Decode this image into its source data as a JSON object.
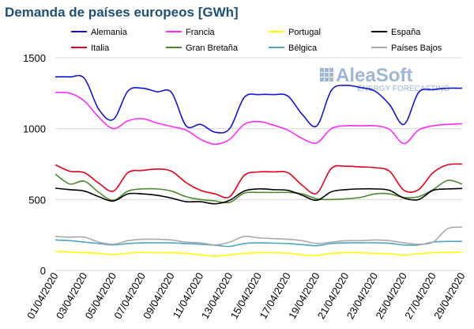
{
  "chart_data": {
    "type": "line",
    "title": "Demanda de países europeos [GWh]",
    "xlabel": "",
    "ylabel": "",
    "ylim": [
      0,
      1500
    ],
    "yticks": [
      0,
      500,
      1000,
      1500
    ],
    "y_tick_labels": [
      "0",
      "500",
      "1000",
      "1500"
    ],
    "grid": "horizontal",
    "legend_position": "top",
    "categories": [
      "01/04/2020",
      "02/04/2020",
      "03/04/2020",
      "04/04/2020",
      "05/04/2020",
      "06/04/2020",
      "07/04/2020",
      "08/04/2020",
      "09/04/2020",
      "10/04/2020",
      "11/04/2020",
      "12/04/2020",
      "13/04/2020",
      "14/04/2020",
      "15/04/2020",
      "16/04/2020",
      "17/04/2020",
      "18/04/2020",
      "19/04/2020",
      "20/04/2020",
      "21/04/2020",
      "22/04/2020",
      "23/04/2020",
      "24/04/2020",
      "25/04/2020",
      "26/04/2020",
      "27/04/2020",
      "28/04/2020",
      "29/04/2020"
    ],
    "x_tick_labels": [
      "01/04/2020",
      "03/04/2020",
      "05/04/2020",
      "07/04/2020",
      "09/04/2020",
      "11/04/2020",
      "13/04/2020",
      "15/04/2020",
      "17/04/2020",
      "19/04/2020",
      "21/04/2020",
      "23/04/2020",
      "25/04/2020",
      "27/04/2020",
      "29/04/2020"
    ],
    "series": [
      {
        "name": "Alemania",
        "color": "#1414d8",
        "values": [
          1365,
          1365,
          1355,
          1135,
          1065,
          1265,
          1285,
          1260,
          1255,
          1020,
          1030,
          975,
          1000,
          1220,
          1240,
          1240,
          1230,
          1100,
          1020,
          1270,
          1305,
          1290,
          1265,
          1170,
          1030,
          1255,
          1275,
          1285,
          1285
        ]
      },
      {
        "name": "Francia",
        "color": "#ff2bff",
        "values": [
          1255,
          1250,
          1195,
          1080,
          1000,
          1055,
          1070,
          1040,
          1015,
          990,
          925,
          890,
          925,
          1030,
          1050,
          1025,
          990,
          930,
          900,
          1000,
          1020,
          1020,
          1020,
          995,
          895,
          990,
          1020,
          1030,
          1035
        ]
      },
      {
        "name": "Portugal",
        "color": "#ffff00",
        "values": [
          135,
          130,
          125,
          120,
          112,
          122,
          127,
          125,
          125,
          120,
          110,
          102,
          110,
          120,
          125,
          125,
          122,
          110,
          106,
          120,
          125,
          125,
          120,
          118,
          108,
          118,
          125,
          128,
          130
        ]
      },
      {
        "name": "España",
        "color": "#000000",
        "values": [
          580,
          570,
          560,
          520,
          490,
          540,
          540,
          530,
          510,
          485,
          485,
          470,
          495,
          560,
          575,
          570,
          565,
          530,
          495,
          555,
          570,
          575,
          575,
          565,
          510,
          500,
          565,
          575,
          578
        ]
      },
      {
        "name": "Italia",
        "color": "#e8001c",
        "values": [
          745,
          700,
          690,
          615,
          560,
          690,
          705,
          715,
          700,
          620,
          565,
          540,
          520,
          670,
          695,
          695,
          690,
          600,
          545,
          720,
          735,
          730,
          725,
          700,
          565,
          570,
          690,
          745,
          750
        ]
      },
      {
        "name": "Gran Bretaña",
        "color": "#4e8a2e",
        "values": [
          680,
          610,
          630,
          550,
          495,
          560,
          575,
          575,
          560,
          520,
          500,
          490,
          480,
          545,
          550,
          550,
          550,
          540,
          505,
          500,
          505,
          515,
          540,
          540,
          515,
          520,
          570,
          635,
          610
        ]
      },
      {
        "name": "Bélgica",
        "color": "#4fa3c4",
        "values": [
          215,
          210,
          200,
          190,
          180,
          190,
          195,
          195,
          195,
          190,
          185,
          178,
          170,
          190,
          195,
          193,
          190,
          182,
          175,
          190,
          195,
          195,
          195,
          192,
          180,
          180,
          200,
          205,
          205
        ]
      },
      {
        "name": "Países Bajos",
        "color": "#aaaaaa",
        "values": [
          240,
          235,
          235,
          200,
          185,
          210,
          220,
          220,
          215,
          200,
          195,
          180,
          200,
          240,
          230,
          225,
          220,
          210,
          190,
          200,
          210,
          210,
          215,
          210,
          195,
          185,
          200,
          295,
          305
        ]
      }
    ]
  },
  "logo": {
    "name": "AleaSoft",
    "tagline": "ENERGY FORECASTING"
  }
}
